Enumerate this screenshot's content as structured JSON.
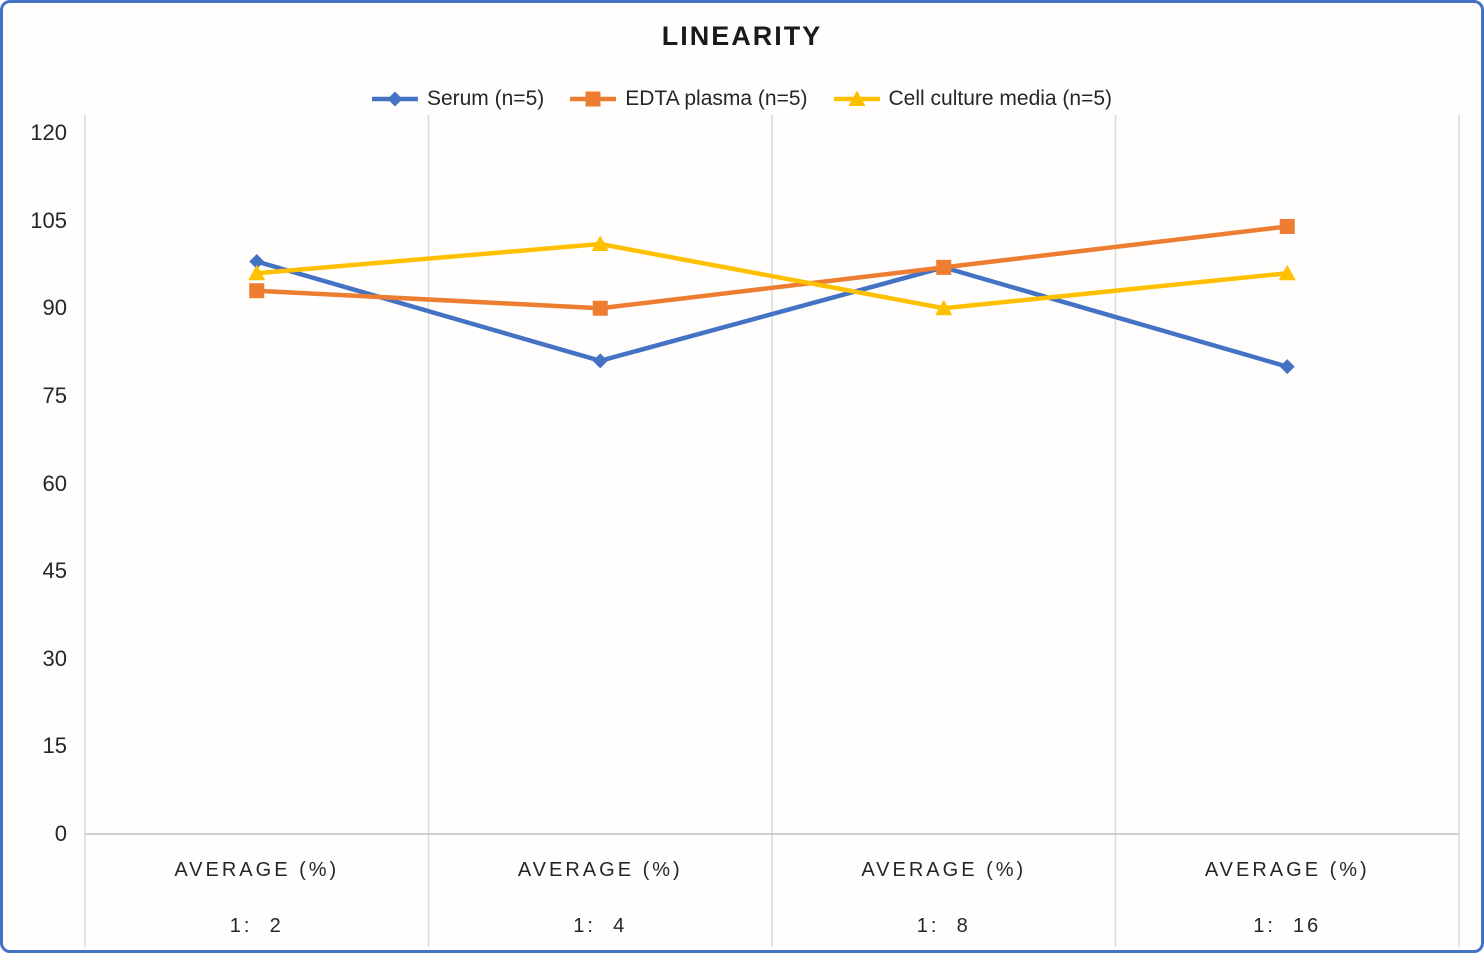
{
  "chart": {
    "title": "LINEARITY",
    "border_color": "#4472C4",
    "background": "#fffefd",
    "gridline_color": "#d9d9d9",
    "baseline_color": "#bfbfbf",
    "text_color": "#262626"
  },
  "chart_data": {
    "type": "line",
    "title": "LINEARITY",
    "categories": [
      {
        "line1": "AVERAGE (%)",
        "line2": "1:  2"
      },
      {
        "line1": "AVERAGE (%)",
        "line2": "1:  4"
      },
      {
        "line1": "AVERAGE (%)",
        "line2": "1:  8"
      },
      {
        "line1": "AVERAGE (%)",
        "line2": "1:  16"
      }
    ],
    "series": [
      {
        "name": "Serum (n=5)",
        "color": "#4472C4",
        "marker": "diamond",
        "values": [
          98,
          81,
          97,
          80
        ]
      },
      {
        "name": "EDTA plasma (n=5)",
        "color": "#ED7D31",
        "marker": "square",
        "values": [
          93,
          90,
          97,
          104
        ]
      },
      {
        "name": "Cell culture media (n=5)",
        "color": "#FFC000",
        "marker": "triangle",
        "values": [
          96,
          101,
          90,
          96
        ]
      }
    ],
    "y_axis": {
      "min": 0,
      "max": 120,
      "step": 15,
      "ticks": [
        120,
        105,
        90,
        75,
        60,
        45,
        30,
        15,
        0
      ]
    },
    "x_axis_label_row1": "AVERAGE (%)",
    "grid": "vertical-category-separators-only",
    "legend_position": "top-center",
    "ylim": [
      0,
      120
    ]
  }
}
